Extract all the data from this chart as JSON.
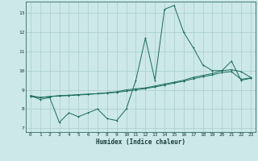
{
  "xlabel": "Humidex (Indice chaleur)",
  "bg_color": "#cce8e8",
  "grid_color": "#aacccc",
  "line_color": "#1a6b5a",
  "xlim": [
    -0.5,
    23.5
  ],
  "ylim": [
    6.8,
    13.6
  ],
  "xticks": [
    0,
    1,
    2,
    3,
    4,
    5,
    6,
    7,
    8,
    9,
    10,
    11,
    12,
    13,
    14,
    15,
    16,
    17,
    18,
    19,
    20,
    21,
    22,
    23
  ],
  "yticks": [
    7,
    8,
    9,
    10,
    11,
    12,
    13
  ],
  "series1_x": [
    0,
    1,
    2,
    3,
    4,
    5,
    6,
    7,
    8,
    9,
    10,
    11,
    12,
    13,
    14,
    15,
    16,
    17,
    18,
    19,
    20,
    21,
    22,
    23
  ],
  "series1_y": [
    8.7,
    8.5,
    8.6,
    7.3,
    7.8,
    7.6,
    7.8,
    8.0,
    7.5,
    7.4,
    8.0,
    9.5,
    11.7,
    9.5,
    13.2,
    13.4,
    12.0,
    11.2,
    10.3,
    10.0,
    10.0,
    10.5,
    9.5,
    9.6
  ],
  "series2_x": [
    0,
    1,
    2,
    3,
    4,
    5,
    6,
    7,
    8,
    9,
    10,
    11,
    12,
    13,
    14,
    15,
    16,
    17,
    18,
    19,
    20,
    21,
    22,
    23
  ],
  "series2_y": [
    8.7,
    8.6,
    8.65,
    8.7,
    8.72,
    8.75,
    8.78,
    8.8,
    8.85,
    8.9,
    9.0,
    9.05,
    9.1,
    9.2,
    9.3,
    9.4,
    9.5,
    9.65,
    9.75,
    9.85,
    10.0,
    10.05,
    9.95,
    9.65
  ],
  "series3_x": [
    0,
    1,
    2,
    3,
    4,
    5,
    6,
    7,
    8,
    9,
    10,
    11,
    12,
    13,
    14,
    15,
    16,
    17,
    18,
    19,
    20,
    21,
    22,
    23
  ],
  "series3_y": [
    8.65,
    8.6,
    8.65,
    8.68,
    8.7,
    8.73,
    8.76,
    8.8,
    8.83,
    8.87,
    8.93,
    9.0,
    9.07,
    9.15,
    9.25,
    9.35,
    9.45,
    9.58,
    9.68,
    9.78,
    9.9,
    9.95,
    9.55,
    9.62
  ]
}
